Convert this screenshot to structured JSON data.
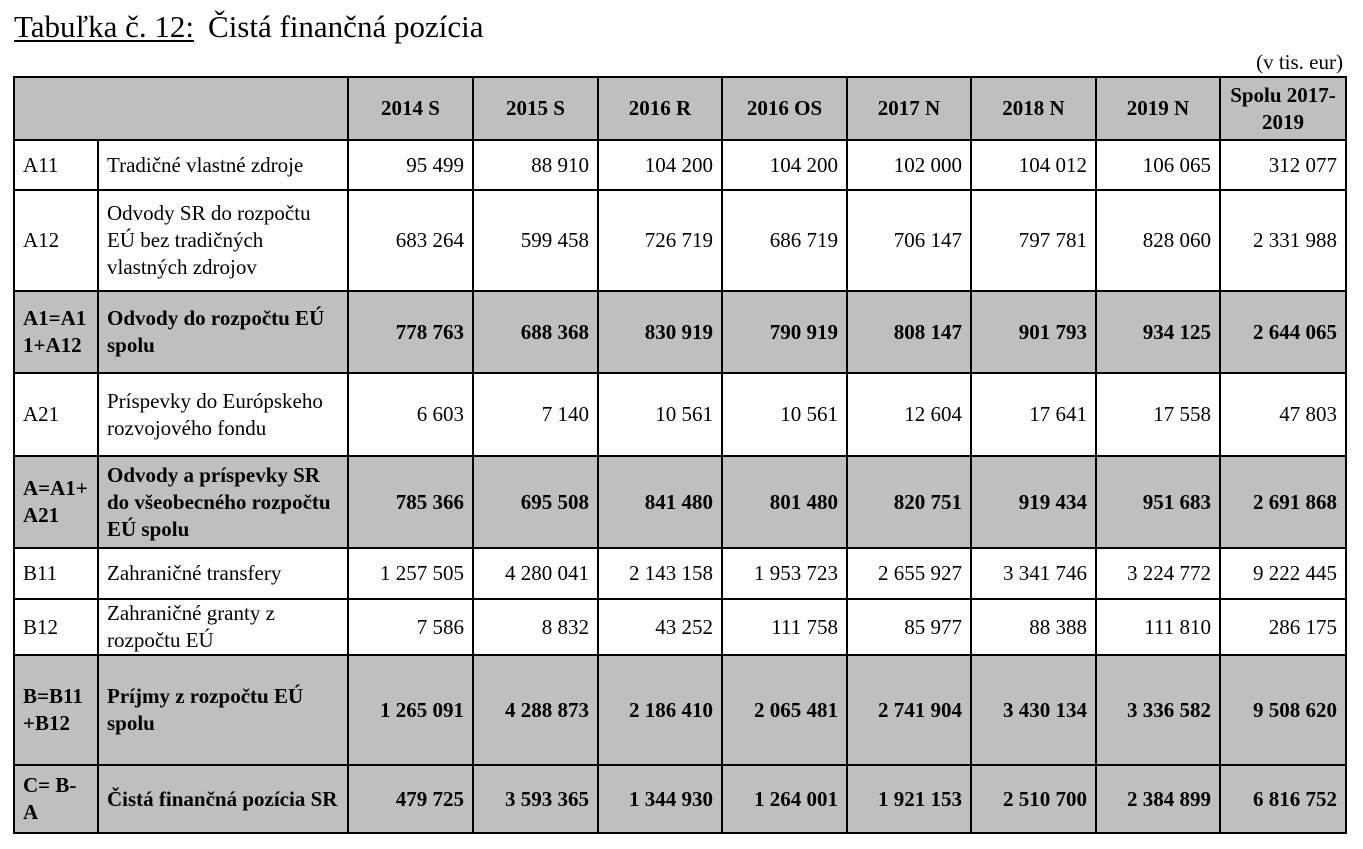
{
  "title": {
    "label": "Tabuľka č. 12:",
    "text": "Čistá finančná pozícia"
  },
  "unit_note": "(v tis. eur)",
  "table": {
    "columns": [
      "2014 S",
      "2015 S",
      "2016 R",
      "2016 OS",
      "2017 N",
      "2018 N",
      "2019 N",
      "Spolu 2017-2019"
    ],
    "rows": [
      {
        "code": "A11",
        "desc": "Tradičné vlastné zdroje",
        "values": [
          "95 499",
          "88 910",
          "104 200",
          "104 200",
          "102 000",
          "104 012",
          "106 065",
          "312 077"
        ],
        "shaded": false
      },
      {
        "code": "A12",
        "desc": "Odvody SR do rozpočtu EÚ bez tradičných vlastných zdrojov",
        "values": [
          "683 264",
          "599 458",
          "726 719",
          "686 719",
          "706 147",
          "797 781",
          "828 060",
          "2 331 988"
        ],
        "shaded": false
      },
      {
        "code": "A1=A11+A12",
        "desc": "Odvody do rozpočtu EÚ spolu",
        "values": [
          "778 763",
          "688 368",
          "830 919",
          "790 919",
          "808 147",
          "901 793",
          "934 125",
          "2 644 065"
        ],
        "shaded": true
      },
      {
        "code": "A21",
        "desc": "Príspevky do Európskeho rozvojového fondu",
        "values": [
          "6 603",
          "7 140",
          "10 561",
          "10 561",
          "12 604",
          "17 641",
          "17 558",
          "47 803"
        ],
        "shaded": false
      },
      {
        "code": "A=A1+A21",
        "desc": "Odvody a príspevky SR do všeobecného rozpočtu EÚ spolu",
        "values": [
          "785 366",
          "695 508",
          "841 480",
          "801 480",
          "820 751",
          "919 434",
          "951 683",
          "2 691 868"
        ],
        "shaded": true
      },
      {
        "code": "B11",
        "desc": "Zahraničné transfery",
        "values": [
          "1 257 505",
          "4 280 041",
          "2 143 158",
          "1 953 723",
          "2 655 927",
          "3 341 746",
          "3 224 772",
          "9 222 445"
        ],
        "shaded": false
      },
      {
        "code": "B12",
        "desc": "Zahraničné granty z rozpočtu EÚ",
        "values": [
          "7 586",
          "8 832",
          "43 252",
          "111 758",
          "85 977",
          "88 388",
          "111 810",
          "286 175"
        ],
        "shaded": false
      },
      {
        "code": "B=B11+B12",
        "desc": "Príjmy z rozpočtu EÚ spolu",
        "values": [
          "1 265 091",
          "4 288 873",
          "2 186 410",
          "2 065 481",
          "2 741 904",
          "3 430 134",
          "3 336 582",
          "9 508 620"
        ],
        "shaded": true
      },
      {
        "code": "C= B-A",
        "desc": "Čistá finančná pozícia SR",
        "values": [
          "479 725",
          "3 593 365",
          "1 344 930",
          "1 264 001",
          "1 921 153",
          "2 510 700",
          "2 384 899",
          "6 816 752"
        ],
        "shaded": true
      }
    ]
  }
}
